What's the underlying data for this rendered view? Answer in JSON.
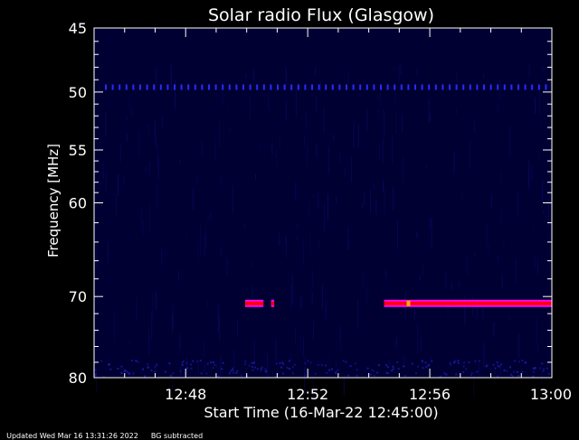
{
  "chart_data": {
    "type": "heatmap",
    "title": "Solar radio Flux (Glasgow)",
    "xlabel": "Start Time (16-Mar-22 12:45:00)",
    "ylabel": "Frequency [MHz]",
    "x_range_minutes": [
      0,
      15
    ],
    "x_ticks": [
      {
        "label": "12:48",
        "minute": 3
      },
      {
        "label": "12:52",
        "minute": 7
      },
      {
        "label": "12:56",
        "minute": 11
      },
      {
        "label": "13:00",
        "minute": 15
      }
    ],
    "y_scale": "log",
    "ylim": [
      45,
      80
    ],
    "y_inverted": true,
    "y_ticks": [
      45,
      50,
      55,
      60,
      70,
      80
    ],
    "features": [
      {
        "type": "dotted-interference-line",
        "frequency_mhz": 49.6,
        "minutes": [
          0,
          15
        ]
      },
      {
        "type": "emission-band",
        "frequency_mhz": 70.8,
        "segments": [
          [
            4.95,
            5.55
          ],
          [
            5.8,
            5.9
          ],
          [
            9.5,
            15
          ]
        ],
        "hotspot_minute": 10.3
      }
    ],
    "colors": {
      "background": "#000000",
      "plot_bg": "#000033",
      "band": "#ff0000",
      "band_edge": "#ff00ff",
      "hot": "#ffb000"
    }
  },
  "footer": {
    "updated": "Updated Wed Mar 16 13:31:26 2022",
    "bg_note": "BG subtracted"
  }
}
